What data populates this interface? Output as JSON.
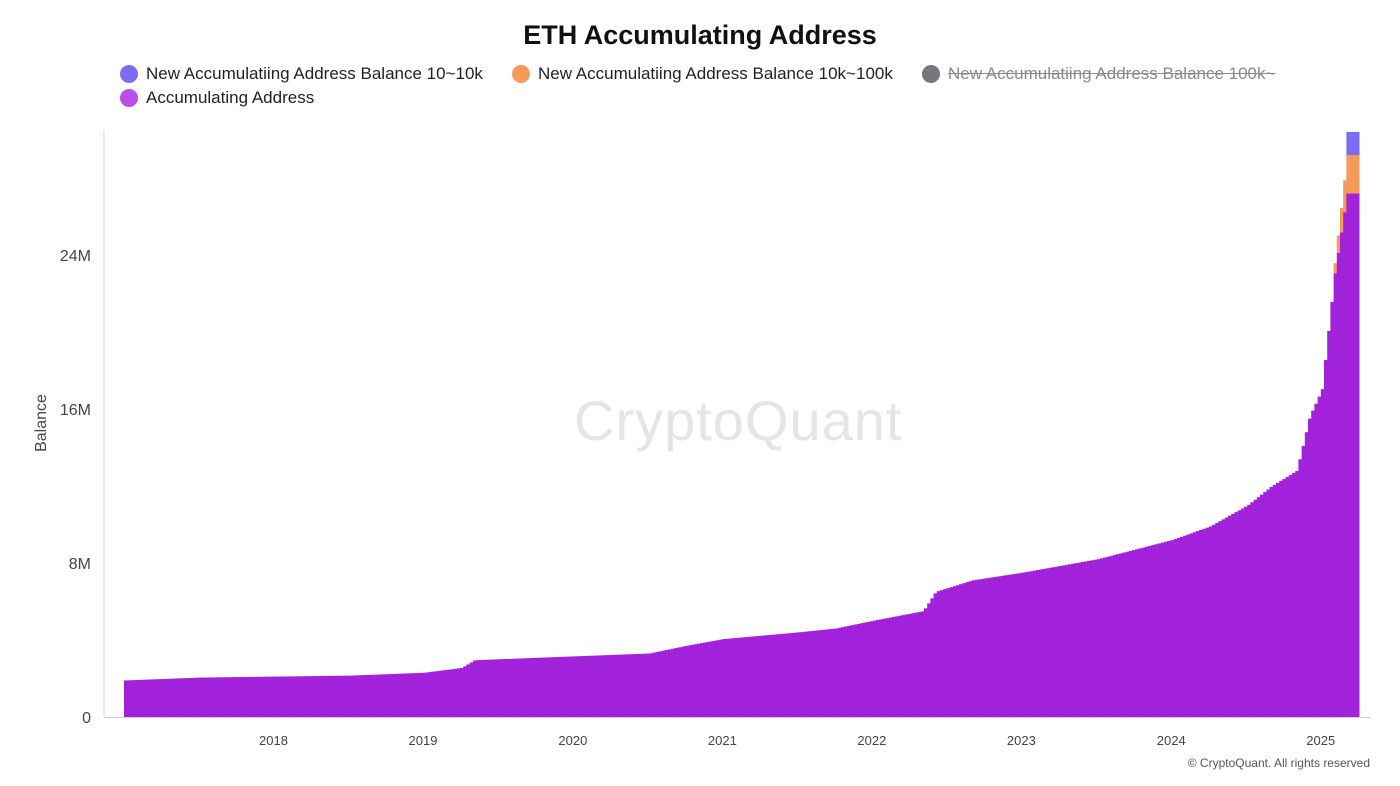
{
  "chart_data": {
    "type": "bar",
    "title": "ETH Accumulating Address",
    "xlabel": "",
    "ylabel": "Balance",
    "ylim": [
      0,
      30500000
    ],
    "yticks": [
      {
        "value": 0,
        "label": "0"
      },
      {
        "value": 8000000,
        "label": "8M"
      },
      {
        "value": 16000000,
        "label": "16M"
      },
      {
        "value": 24000000,
        "label": "24M"
      }
    ],
    "xticks": [
      "2018",
      "2019",
      "2020",
      "2021",
      "2022",
      "2023",
      "2024",
      "2025"
    ],
    "grid": false,
    "legend_position": "top",
    "legend": [
      {
        "name": "New Accumulatiing Address Balance 10~10k",
        "color": "#7b6cf6",
        "hidden": false
      },
      {
        "name": "New Accumulatiing Address Balance 10k~100k",
        "color": "#f59a57",
        "hidden": false
      },
      {
        "name": "New Accumulatiing Address Balance 100k~",
        "color": "#77767b",
        "hidden": true
      },
      {
        "name": "Accumulating Address",
        "color": "#b84ee6",
        "hidden": false
      }
    ],
    "bar_color": "#a222dc",
    "series": [
      {
        "name": "Accumulating Address",
        "points": [
          {
            "x": "2017-07",
            "y": 1900000
          },
          {
            "x": "2018-01",
            "y": 2050000
          },
          {
            "x": "2018-07",
            "y": 2100000
          },
          {
            "x": "2019-01",
            "y": 2150000
          },
          {
            "x": "2019-07",
            "y": 2300000
          },
          {
            "x": "2019-10",
            "y": 2550000
          },
          {
            "x": "2019-11",
            "y": 2950000
          },
          {
            "x": "2020-07",
            "y": 3150000
          },
          {
            "x": "2021-01",
            "y": 3300000
          },
          {
            "x": "2021-04",
            "y": 3700000
          },
          {
            "x": "2021-07",
            "y": 4050000
          },
          {
            "x": "2022-01",
            "y": 4400000
          },
          {
            "x": "2022-04",
            "y": 4600000
          },
          {
            "x": "2022-07",
            "y": 5000000
          },
          {
            "x": "2022-11",
            "y": 5500000
          },
          {
            "x": "2022-12",
            "y": 6500000
          },
          {
            "x": "2023-03",
            "y": 7100000
          },
          {
            "x": "2023-07",
            "y": 7500000
          },
          {
            "x": "2024-01",
            "y": 8200000
          },
          {
            "x": "2024-07",
            "y": 9200000
          },
          {
            "x": "2024-10",
            "y": 9900000
          },
          {
            "x": "2025-01",
            "y": 11000000
          },
          {
            "x": "2025-03",
            "y": 12000000
          },
          {
            "x": "2025-05",
            "y": 12800000
          },
          {
            "x": "2025-06",
            "y": 15600000
          },
          {
            "x": "2025-07",
            "y": 17000000
          },
          {
            "x": "2025-08",
            "y": 23000000
          },
          {
            "x": "2025-09",
            "y": 27200000
          }
        ]
      },
      {
        "name": "New Accumulatiing Address Balance 10k~100k",
        "points": [
          {
            "x": "2025-08",
            "y": 500000
          },
          {
            "x": "2025-09",
            "y": 2000000
          }
        ]
      },
      {
        "name": "New Accumulatiing Address Balance 10~10k",
        "points": [
          {
            "x": "2025-09",
            "y": 1200000
          }
        ]
      }
    ]
  },
  "watermark": "CryptoQuant",
  "footer": "© CryptoQuant. All rights reserved"
}
